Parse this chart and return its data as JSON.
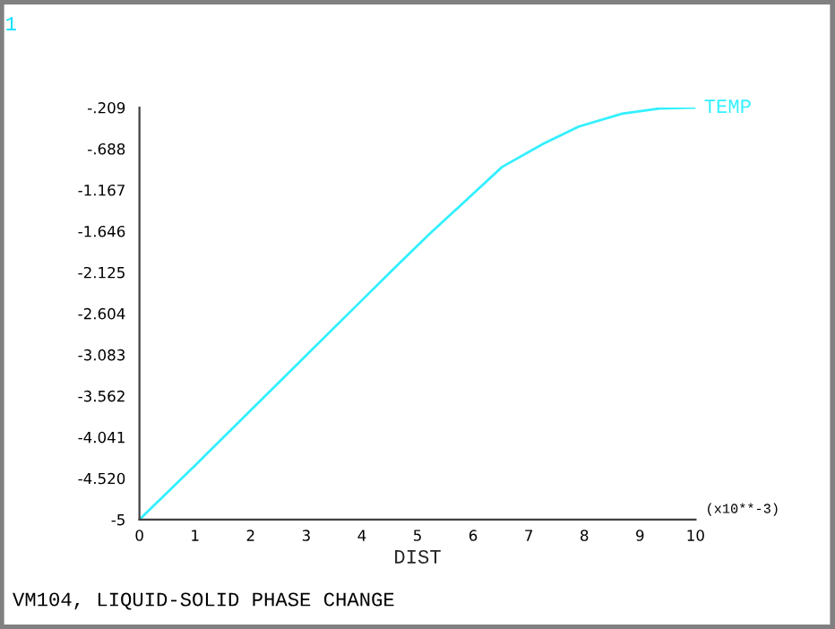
{
  "chart_data": {
    "type": "line",
    "xlabel": "DIST",
    "annotations": [
      "1",
      "(x10**-3)",
      "VM104, LIQUID-SOLID PHASE CHANGE"
    ],
    "series": [
      {
        "name": "TEMP",
        "color": "#33f0ff",
        "x": [
          0,
          1,
          2,
          3,
          4,
          4.58,
          5.23,
          5.87,
          6.52,
          7.26,
          7.9,
          8.68,
          9.35,
          10
        ],
        "values": [
          -5,
          -4.37,
          -3.73,
          -3.09,
          -2.45,
          -2.08,
          -1.67,
          -1.29,
          -0.9,
          -0.63,
          -0.43,
          -0.28,
          -0.22,
          -0.21
        ]
      }
    ],
    "xlim": [
      0,
      10
    ],
    "xticks": [
      0,
      1,
      2,
      3,
      4,
      5,
      6,
      7,
      8,
      9,
      10
    ],
    "ylim": [
      -5,
      -0.209
    ],
    "yticks": [
      -5,
      {
        "value": -4.52,
        "label": "-4.520"
      },
      -4.041,
      -3.562,
      -3.083,
      -2.604,
      -2.125,
      -1.646,
      -1.167,
      {
        "value": -0.688,
        "label": "-.688"
      },
      {
        "value": -0.209,
        "label": "-.209"
      }
    ],
    "grid": false,
    "legend": false,
    "marker": "none",
    "line_style": "solid"
  }
}
